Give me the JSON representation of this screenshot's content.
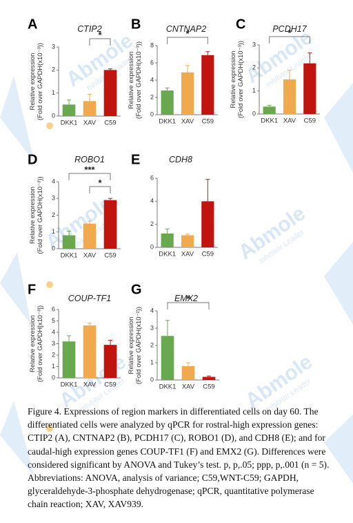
{
  "chart_data": [
    {
      "type": "bar",
      "panel_letter": "A",
      "title": "CTIP2",
      "ylabel": [
        "Relative expression",
        "(Fold over GAPDH(x10⁻³))"
      ],
      "categories": [
        "DKK1",
        "XAV",
        "C59"
      ],
      "values": [
        0.5,
        0.65,
        2.0
      ],
      "errors": [
        0.2,
        0.3,
        0.05
      ],
      "colors": [
        "#6aa84f",
        "#f1a94e",
        "#c0150f"
      ],
      "ylim": [
        0,
        3
      ],
      "yticks": [
        "0",
        "1",
        "2",
        "3"
      ],
      "significance": [
        {
          "from": 1,
          "to": 2,
          "label": "*"
        }
      ]
    },
    {
      "type": "bar",
      "panel_letter": "B",
      "title": "CNTNAP2",
      "ylabel": [
        "Relative expression",
        "(Fold over GAPDH(x10⁻³))"
      ],
      "categories": [
        "DKK1",
        "XAV",
        "C59"
      ],
      "values": [
        2.8,
        4.9,
        6.9
      ],
      "errors": [
        0.3,
        0.8,
        0.4
      ],
      "colors": [
        "#6aa84f",
        "#f1a94e",
        "#c0150f"
      ],
      "ylim": [
        0,
        8
      ],
      "yticks": [
        "0",
        "2",
        "4",
        "6",
        "8"
      ],
      "significance": [
        {
          "from": 0,
          "to": 2,
          "label": "*"
        }
      ]
    },
    {
      "type": "bar",
      "panel_letter": "C",
      "title": "PCDH17",
      "ylabel": [
        "Relative expression",
        "(Fold over GAPDH(x10⁻³))"
      ],
      "categories": [
        "DKK1",
        "XAV",
        "C59"
      ],
      "values": [
        0.32,
        1.5,
        2.2
      ],
      "errors": [
        0.06,
        0.4,
        0.45
      ],
      "colors": [
        "#6aa84f",
        "#f1a94e",
        "#c0150f"
      ],
      "ylim": [
        0,
        3
      ],
      "yticks": [
        "0",
        "1",
        "2",
        "3"
      ],
      "significance": [
        {
          "from": 0,
          "to": 2,
          "label": "*"
        }
      ]
    },
    {
      "type": "bar",
      "panel_letter": "D",
      "title": "ROBO1",
      "ylabel": [
        "Relative expression",
        "(Fold over GAPDH(x10⁻³))"
      ],
      "categories": [
        "DKK1",
        "XAV",
        "C59"
      ],
      "values": [
        0.8,
        1.5,
        2.9
      ],
      "errors": [
        0.25,
        0.15,
        0.1
      ],
      "colors": [
        "#6aa84f",
        "#f1a94e",
        "#c0150f"
      ],
      "ylim": [
        0,
        4
      ],
      "yticks": [
        "0",
        "1",
        "2",
        "3",
        "4"
      ],
      "significance": [
        {
          "from": 0,
          "to": 2,
          "label": "***"
        },
        {
          "from": 1,
          "to": 2,
          "label": "*"
        }
      ]
    },
    {
      "type": "bar",
      "panel_letter": "E",
      "title": "CDH8",
      "ylabel": [],
      "categories": [
        "DKK1",
        "XAV",
        "C59"
      ],
      "values": [
        1.2,
        1.05,
        4.0
      ],
      "errors": [
        0.4,
        0.1,
        1.9
      ],
      "colors": [
        "#6aa84f",
        "#f1a94e",
        "#c0150f"
      ],
      "ylim": [
        0,
        6
      ],
      "yticks": [
        "0",
        "2",
        "4",
        "6"
      ],
      "significance": []
    },
    {
      "type": "bar",
      "panel_letter": "F",
      "title": "COUP-TF1",
      "ylabel": [
        "Relative expression",
        "(Fold over GAPDH[x10⁻³])"
      ],
      "categories": [
        "DKK1",
        "XAV",
        "C59"
      ],
      "values": [
        3.2,
        4.6,
        2.9
      ],
      "errors": [
        0.5,
        0.2,
        0.4
      ],
      "colors": [
        "#6aa84f",
        "#f1a94e",
        "#c0150f"
      ],
      "ylim": [
        0,
        6
      ],
      "yticks": [
        "0",
        "1",
        "2",
        "3",
        "4",
        "5",
        "6"
      ],
      "significance": []
    },
    {
      "type": "bar",
      "panel_letter": "G",
      "title": "EMX2",
      "ylabel": [
        "Relative expression",
        "(Fold over GAPDH(x10⁻²))"
      ],
      "categories": [
        "DKK1",
        "XAV",
        "C59"
      ],
      "values": [
        2.55,
        0.8,
        0.18
      ],
      "errors": [
        0.9,
        0.2,
        0.05
      ],
      "colors": [
        "#6aa84f",
        "#f1a94e",
        "#c0150f"
      ],
      "ylim": [
        0,
        4
      ],
      "yticks": [
        "0",
        "1",
        "2",
        "3",
        "4"
      ],
      "significance": [
        {
          "from": 0,
          "to": 2,
          "label": "*"
        }
      ]
    }
  ],
  "caption": "Figure 4. Expressions of region markers in differentiated cells on day 60. The differentiated cells were analyzed by qPCR for rostral-high expression genes: CTIP2 (A), CNTNAP2 (B), PCDH17 (C), ROBO1 (D), and CDH8 (E); and for caudal-high expression genes COUP-TF1 (F) and EMX2 (G). Differences were considered significant by ANOVA and Tukey’s test. p, p,.05; ppp, p,.001 (n = 5). Abbreviations: ANOVA, analysis of variance; C59,WNT-C59; GAPDH, glyceraldehyde-3-phosphate dehydrogenase; qPCR, quantitative polymerase chain reaction; XAV, XAV939.",
  "watermark": {
    "brand": "Abmole",
    "tagline": "Inhibitor Leader",
    "color": "#2e7fd8"
  }
}
